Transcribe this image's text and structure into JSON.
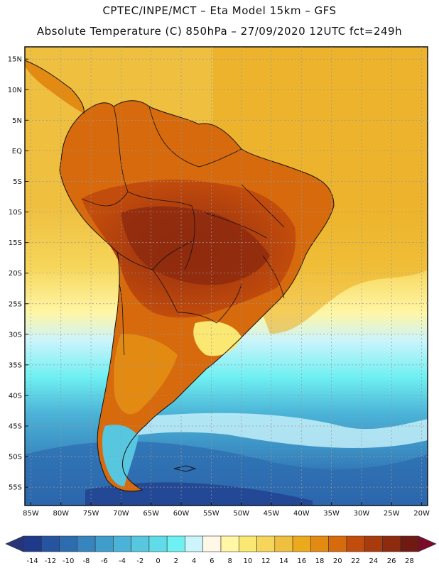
{
  "header": {
    "line1": "CPTEC/INPE/MCT  –   Eta Model 15km  –  GFS",
    "line2": "Absolute Temperature (C) 850hPa  –  27/09/2020 12UTC fct=249h"
  },
  "map": {
    "lat_labels": [
      "15N",
      "10N",
      "5N",
      "EQ",
      "5S",
      "10S",
      "15S",
      "20S",
      "25S",
      "30S",
      "35S",
      "40S",
      "45S",
      "50S",
      "55S"
    ],
    "lon_labels": [
      "85W",
      "80W",
      "75W",
      "70W",
      "65W",
      "60W",
      "55W",
      "50W",
      "45W",
      "40W",
      "35W",
      "30W",
      "25W",
      "20W"
    ],
    "lat_range": [
      17,
      -58
    ],
    "lon_range": [
      -86,
      -19
    ],
    "gridlines": true
  },
  "colorbar": {
    "ticks": [
      "-14",
      "-12",
      "-10",
      "-8",
      "-6",
      "-4",
      "-2",
      "0",
      "2",
      "4",
      "6",
      "8",
      "10",
      "12",
      "14",
      "16",
      "18",
      "20",
      "22",
      "24",
      "26",
      "28"
    ],
    "under_color": "#27347a",
    "over_color": "#7a0c2a",
    "colors": [
      "#203a8a",
      "#2754a0",
      "#2e6cb0",
      "#3785be",
      "#3f9ccb",
      "#4bb3d7",
      "#57c6df",
      "#60dbe8",
      "#6ff0f2",
      "#cbf4fb",
      "#fff8e6",
      "#fff6a6",
      "#fbe872",
      "#f6d65a",
      "#efbf40",
      "#ebaa1c",
      "#e28a12",
      "#d66a0c",
      "#c24c0c",
      "#a83a0e",
      "#8e2a0e",
      "#6f1a12"
    ]
  }
}
